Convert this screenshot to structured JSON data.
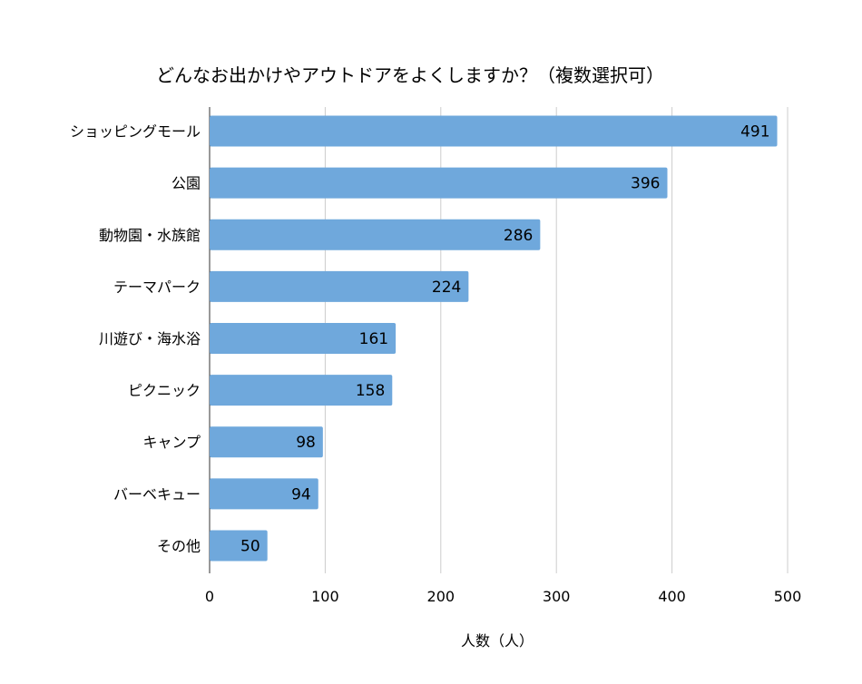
{
  "chart_data": {
    "type": "bar",
    "orientation": "horizontal",
    "title": "どんなお出かけやアウトドアをよくしますか？（複数選択可）",
    "xlabel": "人数（人）",
    "ylabel": "",
    "categories": [
      "ショッピングモール",
      "公園",
      "動物園・水族館",
      "テーマパーク",
      "川遊び・海水浴",
      "ピクニック",
      "キャンプ",
      "バーベキュー",
      "その他"
    ],
    "values": [
      491,
      396,
      286,
      224,
      161,
      158,
      98,
      94,
      50
    ],
    "data_labels": [
      "491",
      "396",
      "286",
      "224",
      "161",
      "158",
      "98",
      "94",
      "50"
    ],
    "xlim": [
      0,
      500
    ],
    "x_ticks": [
      "0",
      "100",
      "200",
      "300",
      "400",
      "500"
    ],
    "grid": true,
    "legend": "none",
    "bar_color": "#6fa8dc"
  }
}
